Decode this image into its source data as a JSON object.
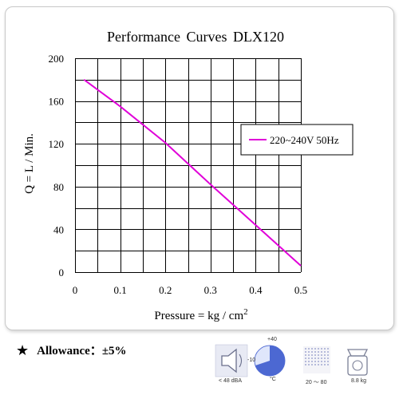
{
  "chart_data": {
    "type": "line",
    "title": "Performance Curves DLX120",
    "xlabel": "Pressure = kg / cm",
    "xlabel_superscript": "2",
    "ylabel": "Q = L / Min.",
    "xlim": [
      0,
      0.5
    ],
    "ylim": [
      0,
      200
    ],
    "xticks": [
      "0",
      "0.1",
      "0.2",
      "0.3",
      "0.4",
      "0.5"
    ],
    "yticks": [
      "0",
      "40",
      "80",
      "120",
      "160",
      "200"
    ],
    "x_grid_step": 0.05,
    "y_grid_step": 20,
    "grid": true,
    "legend_position": "right",
    "series": [
      {
        "name": "220~240V 50Hz",
        "color": "#e000d8",
        "x": [
          0.02,
          0.1,
          0.2,
          0.3,
          0.4,
          0.5
        ],
        "y": [
          180,
          155,
          121,
          82,
          44,
          6
        ]
      }
    ]
  },
  "footer": {
    "allowance_label": "Allowance：",
    "allowance_value": "±5%",
    "star": "★",
    "icons": [
      {
        "name": "noise-icon",
        "caption": "< 48 dBA"
      },
      {
        "name": "temperature-icon",
        "caption": "°C",
        "upper": "+40",
        "lower": "-10"
      },
      {
        "name": "humidity-icon",
        "caption": "20 ～ 80"
      },
      {
        "name": "weight-icon",
        "caption": "8.8 kg"
      }
    ]
  }
}
